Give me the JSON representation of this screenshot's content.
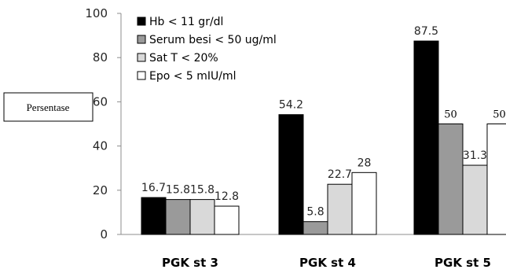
{
  "chart_data": {
    "type": "bar",
    "categories": [
      "PGK st 3",
      "PGK st 4",
      "PGK st 5"
    ],
    "ylabel": "Persentase",
    "ylim": [
      0,
      100
    ],
    "yticks": [
      "0",
      "20",
      "40",
      "60",
      "80",
      "100"
    ],
    "legend_position": "top-left",
    "series": [
      {
        "name": "Hb < 11 gr/dl",
        "values": [
          16.7,
          54.2,
          87.5
        ],
        "labels": [
          "16.7",
          "54.2",
          "87.5"
        ],
        "color": "#000000"
      },
      {
        "name": "Serum besi < 50 ug/ml",
        "values": [
          15.8,
          5.8,
          50
        ],
        "labels": [
          "15.8",
          "5.8",
          "50"
        ],
        "color": "#9a9a9a"
      },
      {
        "name": "Sat T < 20%",
        "values": [
          15.8,
          22.7,
          31.3
        ],
        "labels": [
          "15.8",
          "22.7",
          "31.3"
        ],
        "color": "#d9d9d9"
      },
      {
        "name": "Epo < 5 mIU/ml",
        "values": [
          12.8,
          28,
          50
        ],
        "labels": [
          "12.8",
          "28",
          "50"
        ],
        "color": "#ffffff"
      }
    ]
  }
}
